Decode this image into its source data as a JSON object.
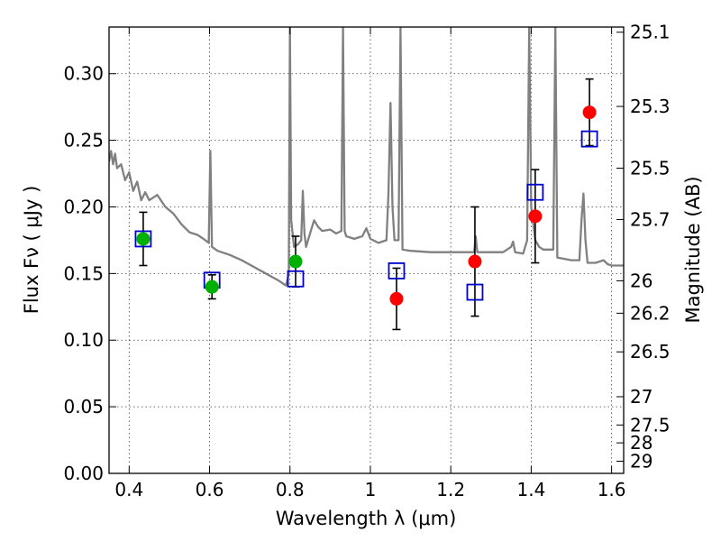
{
  "chart_data": {
    "type": "scatter",
    "xlabel": "Wavelength  λ (μm)",
    "ylabel": "Flux  Fν  ( μJy )",
    "ylabel_right": "Magnitude (AB)",
    "xlim": [
      0.35,
      1.63
    ],
    "ylim": [
      0.0,
      0.335
    ],
    "x_ticks": [
      0.4,
      0.6,
      0.8,
      1.0,
      1.2,
      1.4,
      1.6
    ],
    "x_tick_labels": [
      "0.4",
      "0.6",
      "0.8",
      "1",
      "1.2",
      "1.4",
      "1.6"
    ],
    "y_ticks": [
      0.0,
      0.05,
      0.1,
      0.15,
      0.2,
      0.25,
      0.3
    ],
    "y_tick_labels": [
      "0.00",
      "0.05",
      "0.10",
      "0.15",
      "0.20",
      "0.25",
      "0.30"
    ],
    "magnitude_ticks": [
      "25.1",
      "25.3",
      "25.5",
      "25.7",
      "26",
      "26.2",
      "26.5",
      "27",
      "27.5",
      "28",
      "29"
    ],
    "grid": true,
    "colors": {
      "model": "#808080",
      "green_points": "#00b000",
      "red_points": "#ff0000",
      "model_squares": "#0000cc",
      "errorbars": "#000000"
    },
    "series": [
      {
        "marker": "green-circle",
        "points": [
          {
            "x": 0.435,
            "y": 0.176,
            "err": 0.02
          },
          {
            "x": 0.606,
            "y": 0.14,
            "err": 0.009
          },
          {
            "x": 0.814,
            "y": 0.159,
            "err": 0.019
          }
        ]
      },
      {
        "marker": "red-circle",
        "points": [
          {
            "x": 1.065,
            "y": 0.131,
            "err": 0.023
          },
          {
            "x": 1.26,
            "y": 0.159,
            "err": 0.041
          },
          {
            "x": 1.41,
            "y": 0.193,
            "err": 0.035
          },
          {
            "x": 1.545,
            "y": 0.271,
            "err": 0.025
          }
        ]
      },
      {
        "marker": "blue-open-square",
        "points": [
          {
            "x": 0.435,
            "y": 0.176
          },
          {
            "x": 0.606,
            "y": 0.145
          },
          {
            "x": 0.814,
            "y": 0.146
          },
          {
            "x": 1.065,
            "y": 0.152
          },
          {
            "x": 1.26,
            "y": 0.136
          },
          {
            "x": 1.41,
            "y": 0.211
          },
          {
            "x": 1.545,
            "y": 0.251
          }
        ]
      },
      {
        "marker": "gray-line",
        "points": [
          {
            "x": 0.35,
            "y": 0.234
          },
          {
            "x": 0.355,
            "y": 0.242
          },
          {
            "x": 0.36,
            "y": 0.232
          },
          {
            "x": 0.365,
            "y": 0.24
          },
          {
            "x": 0.37,
            "y": 0.229
          },
          {
            "x": 0.38,
            "y": 0.232
          },
          {
            "x": 0.39,
            "y": 0.22
          },
          {
            "x": 0.4,
            "y": 0.226
          },
          {
            "x": 0.41,
            "y": 0.212
          },
          {
            "x": 0.42,
            "y": 0.219
          },
          {
            "x": 0.43,
            "y": 0.205
          },
          {
            "x": 0.44,
            "y": 0.211
          },
          {
            "x": 0.45,
            "y": 0.205
          },
          {
            "x": 0.47,
            "y": 0.209
          },
          {
            "x": 0.49,
            "y": 0.2
          },
          {
            "x": 0.51,
            "y": 0.195
          },
          {
            "x": 0.53,
            "y": 0.187
          },
          {
            "x": 0.55,
            "y": 0.181
          },
          {
            "x": 0.57,
            "y": 0.179
          },
          {
            "x": 0.585,
            "y": 0.176
          },
          {
            "x": 0.598,
            "y": 0.173
          },
          {
            "x": 0.602,
            "y": 0.242
          },
          {
            "x": 0.606,
            "y": 0.17
          },
          {
            "x": 0.62,
            "y": 0.167
          },
          {
            "x": 0.65,
            "y": 0.164
          },
          {
            "x": 0.68,
            "y": 0.16
          },
          {
            "x": 0.71,
            "y": 0.155
          },
          {
            "x": 0.74,
            "y": 0.15
          },
          {
            "x": 0.77,
            "y": 0.145
          },
          {
            "x": 0.79,
            "y": 0.141
          },
          {
            "x": 0.797,
            "y": 0.15
          },
          {
            "x": 0.8,
            "y": 0.335
          },
          {
            "x": 0.803,
            "y": 0.19
          },
          {
            "x": 0.81,
            "y": 0.17
          },
          {
            "x": 0.82,
            "y": 0.172
          },
          {
            "x": 0.828,
            "y": 0.175
          },
          {
            "x": 0.832,
            "y": 0.212
          },
          {
            "x": 0.836,
            "y": 0.18
          },
          {
            "x": 0.84,
            "y": 0.17
          },
          {
            "x": 0.85,
            "y": 0.18
          },
          {
            "x": 0.86,
            "y": 0.19
          },
          {
            "x": 0.87,
            "y": 0.185
          },
          {
            "x": 0.88,
            "y": 0.182
          },
          {
            "x": 0.9,
            "y": 0.183
          },
          {
            "x": 0.915,
            "y": 0.18
          },
          {
            "x": 0.928,
            "y": 0.182
          },
          {
            "x": 0.932,
            "y": 0.335
          },
          {
            "x": 0.936,
            "y": 0.182
          },
          {
            "x": 0.94,
            "y": 0.178
          },
          {
            "x": 0.96,
            "y": 0.176
          },
          {
            "x": 0.98,
            "y": 0.178
          },
          {
            "x": 0.99,
            "y": 0.184
          },
          {
            "x": 1.0,
            "y": 0.176
          },
          {
            "x": 1.02,
            "y": 0.173
          },
          {
            "x": 1.04,
            "y": 0.175
          },
          {
            "x": 1.045,
            "y": 0.21
          },
          {
            "x": 1.05,
            "y": 0.278
          },
          {
            "x": 1.055,
            "y": 0.2
          },
          {
            "x": 1.06,
            "y": 0.175
          },
          {
            "x": 1.07,
            "y": 0.175
          },
          {
            "x": 1.075,
            "y": 0.335
          },
          {
            "x": 1.08,
            "y": 0.168
          },
          {
            "x": 1.1,
            "y": 0.167
          },
          {
            "x": 1.15,
            "y": 0.166
          },
          {
            "x": 1.2,
            "y": 0.166
          },
          {
            "x": 1.24,
            "y": 0.166
          },
          {
            "x": 1.258,
            "y": 0.166
          },
          {
            "x": 1.262,
            "y": 0.178
          },
          {
            "x": 1.266,
            "y": 0.166
          },
          {
            "x": 1.3,
            "y": 0.166
          },
          {
            "x": 1.33,
            "y": 0.166
          },
          {
            "x": 1.35,
            "y": 0.17
          },
          {
            "x": 1.355,
            "y": 0.174
          },
          {
            "x": 1.36,
            "y": 0.166
          },
          {
            "x": 1.38,
            "y": 0.165
          },
          {
            "x": 1.39,
            "y": 0.175
          },
          {
            "x": 1.395,
            "y": 0.335
          },
          {
            "x": 1.4,
            "y": 0.2
          },
          {
            "x": 1.41,
            "y": 0.175
          },
          {
            "x": 1.42,
            "y": 0.17
          },
          {
            "x": 1.43,
            "y": 0.168
          },
          {
            "x": 1.455,
            "y": 0.168
          },
          {
            "x": 1.46,
            "y": 0.335
          },
          {
            "x": 1.465,
            "y": 0.162
          },
          {
            "x": 1.5,
            "y": 0.16
          },
          {
            "x": 1.52,
            "y": 0.16
          },
          {
            "x": 1.525,
            "y": 0.19
          },
          {
            "x": 1.53,
            "y": 0.21
          },
          {
            "x": 1.535,
            "y": 0.175
          },
          {
            "x": 1.54,
            "y": 0.158
          },
          {
            "x": 1.56,
            "y": 0.158
          },
          {
            "x": 1.58,
            "y": 0.16
          },
          {
            "x": 1.59,
            "y": 0.157
          },
          {
            "x": 1.6,
            "y": 0.156
          },
          {
            "x": 1.63,
            "y": 0.156
          }
        ]
      }
    ]
  }
}
